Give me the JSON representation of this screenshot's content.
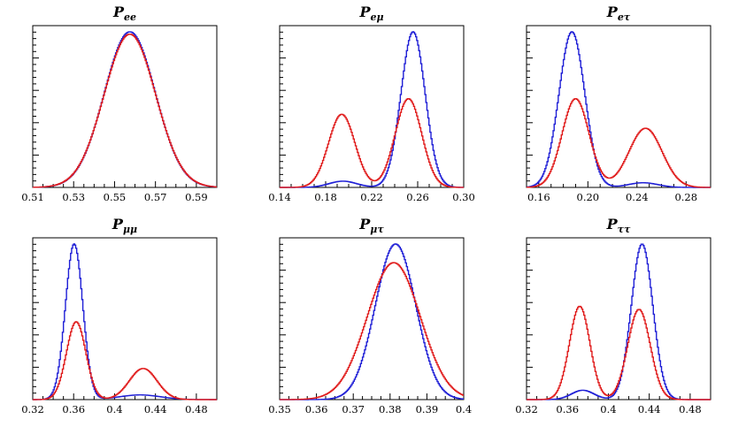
{
  "chart_data": [
    {
      "type": "line",
      "title_base": "P",
      "title_sub": "ee",
      "xlim": [
        0.51,
        0.6
      ],
      "xticks": [
        0.51,
        0.53,
        0.55,
        0.57,
        0.59
      ],
      "xtick_labels": [
        "0.51",
        "0.53",
        "0.55",
        "0.57",
        "0.59"
      ],
      "ylabel": "",
      "xlabel": "",
      "series": [
        {
          "name": "blue",
          "color": "#1f1fd6",
          "components": [
            {
              "amp": 1.0,
              "mu": 0.5575,
              "sigma": 0.0125
            }
          ]
        },
        {
          "name": "red",
          "color": "#e01b1b",
          "components": [
            {
              "amp": 0.985,
              "mu": 0.5575,
              "sigma": 0.0126
            }
          ]
        }
      ]
    },
    {
      "type": "line",
      "title_base": "P",
      "title_sub": "eμ",
      "xlim": [
        0.14,
        0.3
      ],
      "xticks": [
        0.14,
        0.18,
        0.22,
        0.26,
        0.3
      ],
      "xtick_labels": [
        "0.14",
        "0.18",
        "0.22",
        "0.26",
        "0.30"
      ],
      "ylabel": "",
      "xlabel": "",
      "series": [
        {
          "name": "blue",
          "color": "#1f1fd6",
          "components": [
            {
              "amp": 0.04,
              "mu": 0.195,
              "sigma": 0.012
            },
            {
              "amp": 1.0,
              "mu": 0.256,
              "sigma": 0.0105
            }
          ]
        },
        {
          "name": "red",
          "color": "#e01b1b",
          "components": [
            {
              "amp": 0.47,
              "mu": 0.194,
              "sigma": 0.0115
            },
            {
              "amp": 0.57,
              "mu": 0.252,
              "sigma": 0.0115
            }
          ]
        }
      ]
    },
    {
      "type": "line",
      "title_base": "P",
      "title_sub": "eτ",
      "xlim": [
        0.15,
        0.3
      ],
      "xticks": [
        0.16,
        0.2,
        0.24,
        0.28
      ],
      "xtick_labels": [
        "0.16",
        "0.20",
        "0.24",
        "0.28"
      ],
      "ylabel": "",
      "xlabel": "",
      "series": [
        {
          "name": "blue",
          "color": "#1f1fd6",
          "components": [
            {
              "amp": 1.0,
              "mu": 0.187,
              "sigma": 0.0105
            },
            {
              "amp": 0.03,
              "mu": 0.245,
              "sigma": 0.012
            }
          ]
        },
        {
          "name": "red",
          "color": "#e01b1b",
          "components": [
            {
              "amp": 0.57,
              "mu": 0.19,
              "sigma": 0.011
            },
            {
              "amp": 0.38,
              "mu": 0.247,
              "sigma": 0.0135
            }
          ]
        }
      ]
    },
    {
      "type": "line",
      "title_base": "P",
      "title_sub": "μμ",
      "xlim": [
        0.32,
        0.5
      ],
      "xticks": [
        0.32,
        0.36,
        0.4,
        0.44,
        0.48
      ],
      "xtick_labels": [
        "0.32",
        "0.36",
        "0.4",
        "0.44",
        "0.48"
      ],
      "ylabel": "",
      "xlabel": "",
      "series": [
        {
          "name": "blue",
          "color": "#1f1fd6",
          "components": [
            {
              "amp": 1.0,
              "mu": 0.3605,
              "sigma": 0.0085
            },
            {
              "amp": 0.03,
              "mu": 0.425,
              "sigma": 0.02
            }
          ]
        },
        {
          "name": "red",
          "color": "#e01b1b",
          "components": [
            {
              "amp": 0.5,
              "mu": 0.3625,
              "sigma": 0.0095
            },
            {
              "amp": 0.2,
              "mu": 0.428,
              "sigma": 0.0135
            }
          ]
        }
      ]
    },
    {
      "type": "line",
      "title_base": "P",
      "title_sub": "μτ",
      "xlim": [
        0.35,
        0.4
      ],
      "xticks": [
        0.35,
        0.36,
        0.37,
        0.38,
        0.39,
        0.4
      ],
      "xtick_labels": [
        "0.35",
        "0.36",
        "0.37",
        "0.38",
        "0.39",
        "0.4"
      ],
      "ylabel": "",
      "xlabel": "",
      "series": [
        {
          "name": "blue",
          "color": "#1f1fd6",
          "components": [
            {
              "amp": 1.0,
              "mu": 0.3815,
              "sigma": 0.0055
            }
          ]
        },
        {
          "name": "red",
          "color": "#e01b1b",
          "components": [
            {
              "amp": 0.88,
              "mu": 0.381,
              "sigma": 0.0072
            }
          ]
        }
      ]
    },
    {
      "type": "line",
      "title_base": "P",
      "title_sub": "ττ",
      "xlim": [
        0.32,
        0.5
      ],
      "xticks": [
        0.32,
        0.36,
        0.4,
        0.44,
        0.48
      ],
      "xtick_labels": [
        "0.32",
        "0.36",
        "0.4",
        "0.44",
        "0.48"
      ],
      "ylabel": "",
      "xlabel": "",
      "series": [
        {
          "name": "blue",
          "color": "#1f1fd6",
          "components": [
            {
              "amp": 0.06,
              "mu": 0.375,
              "sigma": 0.011
            },
            {
              "amp": 1.0,
              "mu": 0.433,
              "sigma": 0.0105
            }
          ]
        },
        {
          "name": "red",
          "color": "#e01b1b",
          "components": [
            {
              "amp": 0.6,
              "mu": 0.372,
              "sigma": 0.01
            },
            {
              "amp": 0.58,
              "mu": 0.43,
              "sigma": 0.011
            }
          ]
        }
      ]
    }
  ]
}
